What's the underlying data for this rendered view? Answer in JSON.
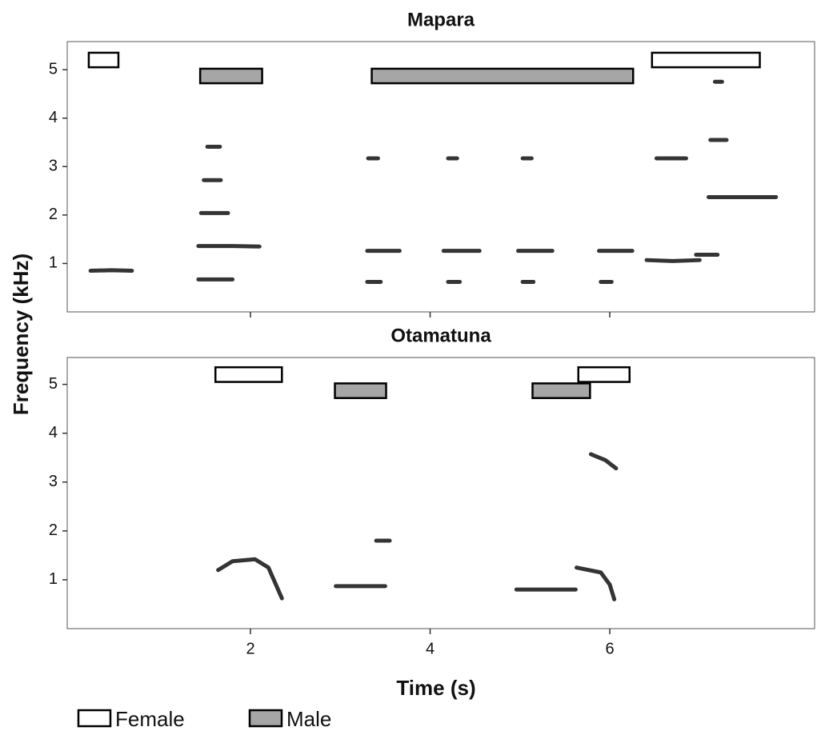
{
  "axis_labels": {
    "x": "Time (s)",
    "y": "Frequency (kHz)"
  },
  "legend": [
    {
      "name": "Female",
      "color": "#ffffff",
      "band": [
        5.05,
        5.35
      ]
    },
    {
      "name": "Male",
      "color": "#a6a6a6",
      "band": [
        4.72,
        5.02
      ]
    }
  ],
  "chart_data": [
    {
      "type": "spectrogram",
      "title": "Mapara",
      "xlim": [
        -0.04,
        8.28
      ],
      "ylim": [
        0,
        5.58
      ],
      "xticks": [
        2,
        4,
        6
      ],
      "yticks": [
        1,
        2,
        3,
        4,
        5
      ],
      "xtick_labels": false,
      "calls": [
        [
          {
            "start": 0.2,
            "end": 0.53
          },
          {
            "start": 6.47,
            "end": 7.67
          }
        ],
        [
          {
            "start": 1.44,
            "end": 2.13
          },
          {
            "start": 3.35,
            "end": 6.26
          }
        ]
      ],
      "traces": [
        {
          "x": [
            0.22,
            0.45,
            0.68
          ],
          "y": [
            0.85,
            0.86,
            0.85
          ]
        },
        {
          "x": [
            1.42,
            1.8,
            2.1
          ],
          "y": [
            1.36,
            1.36,
            1.35
          ]
        },
        {
          "x": [
            1.42,
            1.8
          ],
          "y": [
            0.67,
            0.67
          ]
        },
        {
          "x": [
            1.45,
            1.75
          ],
          "y": [
            2.04,
            2.04
          ]
        },
        {
          "x": [
            1.48,
            1.67
          ],
          "y": [
            2.72,
            2.72
          ]
        },
        {
          "x": [
            1.52,
            1.66
          ],
          "y": [
            3.41,
            3.41
          ]
        },
        {
          "x": [
            3.3,
            3.66
          ],
          "y": [
            1.26,
            1.26
          ]
        },
        {
          "x": [
            4.15,
            4.55
          ],
          "y": [
            1.26,
            1.26
          ]
        },
        {
          "x": [
            4.98,
            5.36
          ],
          "y": [
            1.26,
            1.26
          ]
        },
        {
          "x": [
            5.88,
            6.25
          ],
          "y": [
            1.26,
            1.26
          ]
        },
        {
          "x": [
            3.3,
            3.45
          ],
          "y": [
            0.62,
            0.62
          ]
        },
        {
          "x": [
            4.2,
            4.33
          ],
          "y": [
            0.62,
            0.62
          ]
        },
        {
          "x": [
            5.03,
            5.15
          ],
          "y": [
            0.62,
            0.62
          ]
        },
        {
          "x": [
            5.9,
            6.02
          ],
          "y": [
            0.62,
            0.62
          ]
        },
        {
          "x": [
            3.31,
            3.42
          ],
          "y": [
            3.17,
            3.17
          ]
        },
        {
          "x": [
            4.2,
            4.3
          ],
          "y": [
            3.17,
            3.17
          ]
        },
        {
          "x": [
            5.03,
            5.13
          ],
          "y": [
            3.17,
            3.17
          ]
        },
        {
          "x": [
            6.41,
            6.7,
            7.0
          ],
          "y": [
            1.07,
            1.05,
            1.07
          ]
        },
        {
          "x": [
            6.96,
            7.2
          ],
          "y": [
            1.18,
            1.18
          ]
        },
        {
          "x": [
            7.1,
            7.45,
            7.85
          ],
          "y": [
            2.37,
            2.37,
            2.37
          ]
        },
        {
          "x": [
            7.12,
            7.3
          ],
          "y": [
            3.55,
            3.55
          ]
        },
        {
          "x": [
            6.52,
            6.85
          ],
          "y": [
            3.17,
            3.17
          ]
        },
        {
          "x": [
            7.17,
            7.25
          ],
          "y": [
            4.75,
            4.75
          ]
        }
      ]
    },
    {
      "type": "spectrogram",
      "title": "Otamatuna",
      "xlim": [
        -0.04,
        8.28
      ],
      "ylim": [
        0,
        5.55
      ],
      "xticks": [
        2,
        4,
        6
      ],
      "yticks": [
        1,
        2,
        3,
        4,
        5
      ],
      "xtick_labels": true,
      "calls": [
        [
          {
            "start": 1.61,
            "end": 2.35
          },
          {
            "start": 5.65,
            "end": 6.22
          }
        ],
        [
          {
            "start": 2.94,
            "end": 3.51
          },
          {
            "start": 5.14,
            "end": 5.78
          }
        ]
      ],
      "traces": [
        {
          "x": [
            1.64,
            1.8,
            2.05,
            2.2,
            2.35
          ],
          "y": [
            1.2,
            1.38,
            1.42,
            1.25,
            0.62
          ]
        },
        {
          "x": [
            2.95,
            3.2,
            3.5
          ],
          "y": [
            0.87,
            0.87,
            0.87
          ]
        },
        {
          "x": [
            3.4,
            3.55
          ],
          "y": [
            1.8,
            1.8
          ]
        },
        {
          "x": [
            4.96,
            5.3,
            5.62
          ],
          "y": [
            0.8,
            0.8,
            0.8
          ]
        },
        {
          "x": [
            5.63,
            5.9,
            6.0,
            6.05
          ],
          "y": [
            1.25,
            1.15,
            0.9,
            0.6
          ]
        },
        {
          "x": [
            5.79,
            5.95,
            6.07
          ],
          "y": [
            3.57,
            3.45,
            3.28
          ]
        }
      ]
    }
  ]
}
